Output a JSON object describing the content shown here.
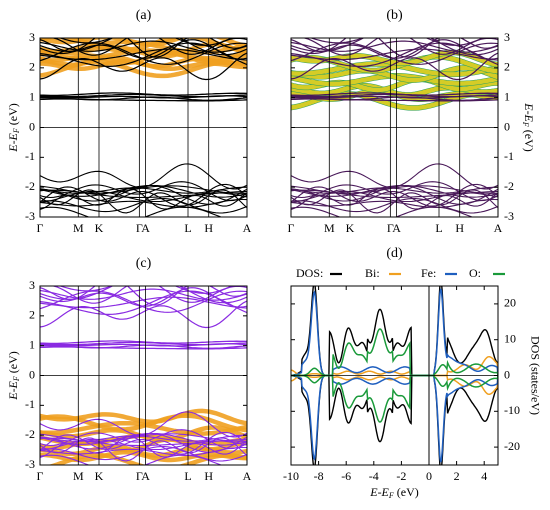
{
  "chart_data": [
    {
      "id": "a",
      "type": "line",
      "label": "(a)",
      "ylabel": "E-E_F (eV)",
      "ylim": [
        -3,
        3
      ],
      "yticks": [
        "-3",
        "-2",
        "-1",
        "0",
        "1",
        "2",
        "3"
      ],
      "xticks": [
        "Γ",
        "M",
        "K",
        "Γ",
        "A",
        "L",
        "H",
        "A"
      ],
      "band_color": "#000000",
      "highlight": {
        "color": "#f0a020",
        "range": [
          1.9,
          3.0
        ]
      }
    },
    {
      "id": "b",
      "type": "line",
      "label": "(b)",
      "ylabel": "E-E_F (eV)",
      "ylim": [
        -3,
        3
      ],
      "yticks": [
        "-3",
        "-2",
        "-1",
        "0",
        "1",
        "2",
        "3"
      ],
      "xticks": [
        "Γ",
        "M",
        "K",
        "Γ",
        "A",
        "L",
        "H",
        "A"
      ],
      "band_color": "#4a1a5a",
      "highlight": {
        "color": "#e8d020",
        "edge": "#2aa060",
        "range": [
          0.8,
          2.4
        ]
      }
    },
    {
      "id": "c",
      "type": "line",
      "label": "(c)",
      "ylabel": "E-E_F (eV)",
      "ylim": [
        -3,
        3
      ],
      "yticks": [
        "-3",
        "-2",
        "-1",
        "0",
        "1",
        "2",
        "3"
      ],
      "xticks": [
        "Γ",
        "M",
        "K",
        "Γ",
        "A",
        "L",
        "H",
        "A"
      ],
      "band_color": "#8a2be2",
      "highlight": {
        "color": "#f0a020",
        "range": [
          -3.0,
          -1.3
        ]
      }
    },
    {
      "id": "d",
      "type": "line",
      "label": "(d)",
      "xlabel": "E-E_F (eV)",
      "ylabel": "DOS (states/eV)",
      "xlim": [
        -10,
        5
      ],
      "ylim": [
        -25,
        25
      ],
      "xticks": [
        "-10",
        "-8",
        "-6",
        "-4",
        "-2",
        "0",
        "2",
        "4"
      ],
      "yticks": [
        "-20",
        "-10",
        "0",
        "10",
        "20"
      ],
      "legend": [
        {
          "name": "DOS:",
          "color": "#000000"
        },
        {
          "name": "Bi:",
          "color": "#f0a020"
        },
        {
          "name": "Fe:",
          "color": "#1f5fbf"
        },
        {
          "name": "O:",
          "color": "#1a9a3a"
        }
      ]
    }
  ]
}
